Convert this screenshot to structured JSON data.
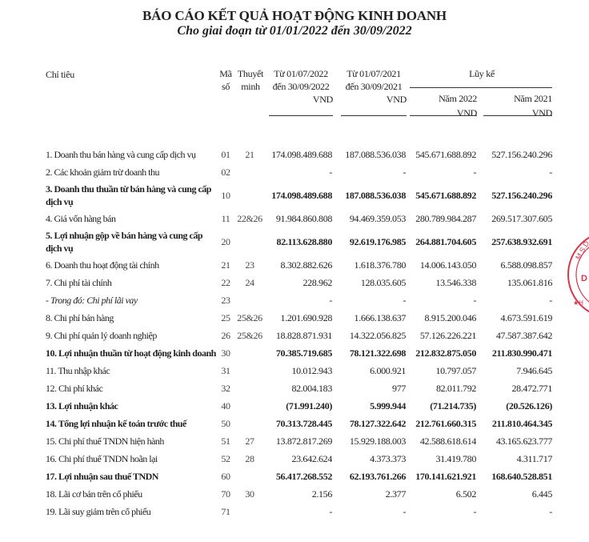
{
  "title": "BÁO CÁO KẾT QUẢ HOẠT ĐỘNG KINH DOANH",
  "subtitle": "Cho giai đoạn từ 01/01/2022 đến 30/09/2022",
  "header": {
    "indicator": "Chỉ tiêu",
    "code_line1": "Mã",
    "code_line2": "số",
    "note_line1": "Thuyết",
    "note_line2": "minh",
    "col1_line1": "Từ 01/07/2022",
    "col1_line2": "đến 30/09/2022",
    "col1_unit": "VND",
    "col2_line1": "Từ 01/07/2021",
    "col2_line2": "đến 30/09/2021",
    "col2_unit": "VND",
    "cumulative": "Lũy kế",
    "col3_line1": "Năm 2022",
    "col3_unit": "VND",
    "col4_line1": "Năm 2021",
    "col4_unit": "VND"
  },
  "rows": [
    {
      "label": "1. Doanh thu bán hàng và cung cấp dịch vụ",
      "code": "01",
      "note": "21",
      "v1": "174.098.489.688",
      "v2": "187.088.536.038",
      "v3": "545.671.688.892",
      "v4": "527.156.240.296",
      "style": ""
    },
    {
      "label": "2. Các khoản giảm trừ doanh thu",
      "code": "02",
      "note": "",
      "v1": "-",
      "v2": "-",
      "v3": "-",
      "v4": "-",
      "style": ""
    },
    {
      "label": "3. Doanh thu thuần từ bán hàng và cung cấp dịch vụ",
      "code": "10",
      "note": "",
      "v1": "174.098.489.688",
      "v2": "187.088.536.038",
      "v3": "545.671.688.892",
      "v4": "527.156.240.296",
      "style": "bold two"
    },
    {
      "label": "4. Giá vốn hàng bán",
      "code": "11",
      "note": "22&26",
      "v1": "91.984.860.808",
      "v2": "94.469.359.053",
      "v3": "280.789.984.287",
      "v4": "269.517.307.605",
      "style": ""
    },
    {
      "label": "5. Lợi nhuận gộp về bán hàng và cung cấp dịch vụ",
      "code": "20",
      "note": "",
      "v1": "82.113.628.880",
      "v2": "92.619.176.985",
      "v3": "264.881.704.605",
      "v4": "257.638.932.691",
      "style": "bold two"
    },
    {
      "label": "6. Doanh thu hoạt động tài chính",
      "code": "21",
      "note": "23",
      "v1": "8.302.882.626",
      "v2": "1.618.376.780",
      "v3": "14.006.143.050",
      "v4": "6.588.098.857",
      "style": ""
    },
    {
      "label": "7. Chi phí tài chính",
      "code": "22",
      "note": "24",
      "v1": "228.962",
      "v2": "128.035.605",
      "v3": "13.546.338",
      "v4": "135.061.816",
      "style": ""
    },
    {
      "label": "- Trong đó: Chi phí lãi vay",
      "code": "23",
      "note": "",
      "v1": "-",
      "v2": "-",
      "v3": "-",
      "v4": "-",
      "style": "italic"
    },
    {
      "label": "8. Chi phí bán hàng",
      "code": "25",
      "note": "25&26",
      "v1": "1.201.690.928",
      "v2": "1.666.138.637",
      "v3": "8.915.200.046",
      "v4": "4.673.591.619",
      "style": ""
    },
    {
      "label": "9. Chi phí quản lý doanh nghiệp",
      "code": "26",
      "note": "25&26",
      "v1": "18.828.871.931",
      "v2": "14.322.056.825",
      "v3": "57.126.226.221",
      "v4": "47.587.387.642",
      "style": ""
    },
    {
      "label": "10. Lợi nhuận thuần từ hoạt động kinh doanh",
      "code": "30",
      "note": "",
      "v1": "70.385.719.685",
      "v2": "78.121.322.698",
      "v3": "212.832.875.050",
      "v4": "211.830.990.471",
      "style": "bold"
    },
    {
      "label": "11. Thu nhập khác",
      "code": "31",
      "note": "",
      "v1": "10.012.943",
      "v2": "6.000.921",
      "v3": "10.797.057",
      "v4": "7.946.645",
      "style": ""
    },
    {
      "label": "12. Chi phí khác",
      "code": "32",
      "note": "",
      "v1": "82.004.183",
      "v2": "977",
      "v3": "82.011.792",
      "v4": "28.472.771",
      "style": ""
    },
    {
      "label": "13. Lợi nhuận khác",
      "code": "40",
      "note": "",
      "v1": "(71.991.240)",
      "v2": "5.999.944",
      "v3": "(71.214.735)",
      "v4": "(20.526.126)",
      "style": "bold"
    },
    {
      "label": "14. Tổng lợi nhuận kế toán trước thuế",
      "code": "50",
      "note": "",
      "v1": "70.313.728.445",
      "v2": "78.127.322.642",
      "v3": "212.761.660.315",
      "v4": "211.810.464.345",
      "style": "bold"
    },
    {
      "label": "15. Chi phí thuế TNDN hiện hành",
      "code": "51",
      "note": "27",
      "v1": "13.872.817.269",
      "v2": "15.929.188.003",
      "v3": "42.588.618.614",
      "v4": "43.165.623.777",
      "style": ""
    },
    {
      "label": "16. Chi phí thuế TNDN hoãn lại",
      "code": "52",
      "note": "28",
      "v1": "23.642.624",
      "v2": "4.373.373",
      "v3": "31.419.780",
      "v4": "4.311.717",
      "style": ""
    },
    {
      "label": "17. Lợi nhuận sau thuế TNDN",
      "code": "60",
      "note": "",
      "v1": "56.417.268.552",
      "v2": "62.193.761.266",
      "v3": "170.141.621.921",
      "v4": "168.640.528.851",
      "style": "bold"
    },
    {
      "label": "18. Lãi cơ bản trên cổ phiếu",
      "code": "70",
      "note": "30",
      "v1": "2.156",
      "v2": "2.377",
      "v3": "6.502",
      "v4": "6.445",
      "style": ""
    },
    {
      "label": "19. Lãi suy giảm trên cổ phiếu",
      "code": "71",
      "note": "",
      "v1": "-",
      "v2": "-",
      "v3": "-",
      "v4": "-",
      "style": ""
    }
  ],
  "stamp": {
    "text": "M.S.D.N",
    "color": "#d9364a"
  }
}
